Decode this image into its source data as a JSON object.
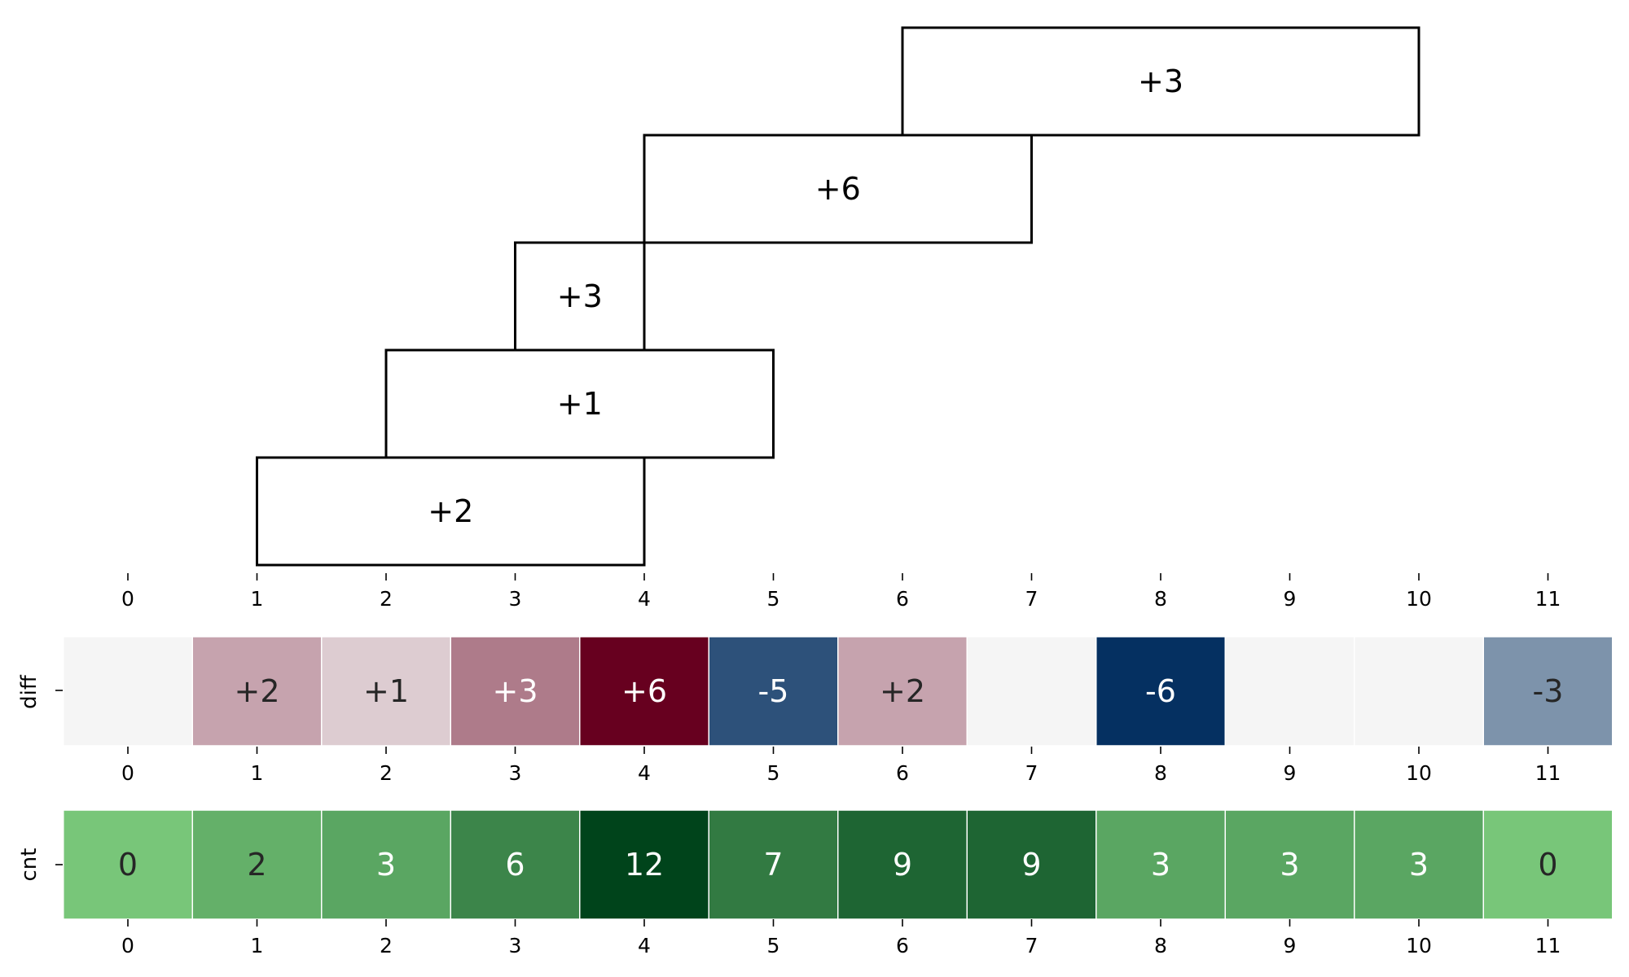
{
  "axis_ticks": [
    "0",
    "1",
    "2",
    "3",
    "4",
    "5",
    "6",
    "7",
    "8",
    "9",
    "10",
    "11"
  ],
  "intervals": [
    {
      "start": 1,
      "end": 4,
      "label": "+2"
    },
    {
      "start": 2,
      "end": 5,
      "label": "+1"
    },
    {
      "start": 3,
      "end": 4,
      "label": "+3"
    },
    {
      "start": 4,
      "end": 7,
      "label": "+6"
    },
    {
      "start": 6,
      "end": 10,
      "label": "+3"
    }
  ],
  "diff_row": {
    "label": "diff",
    "values": [
      0,
      2,
      1,
      3,
      6,
      -5,
      2,
      0,
      -6,
      0,
      0,
      -3
    ],
    "labels": [
      "",
      "+2",
      "+1",
      "+3",
      "+6",
      "-5",
      "+2",
      "",
      "-6",
      "",
      "",
      "-3"
    ]
  },
  "cnt_row": {
    "label": "cnt",
    "values": [
      0,
      2,
      3,
      6,
      12,
      7,
      9,
      9,
      3,
      3,
      3,
      0
    ],
    "labels": [
      "0",
      "2",
      "3",
      "6",
      "12",
      "7",
      "9",
      "9",
      "3",
      "3",
      "3",
      "0"
    ]
  },
  "colors": {
    "diff_positive": "#67001f",
    "diff_zero": "#f5f5f5",
    "diff_negative": "#053061",
    "cnt_low": "#78c679",
    "cnt_high": "#00441b"
  }
}
